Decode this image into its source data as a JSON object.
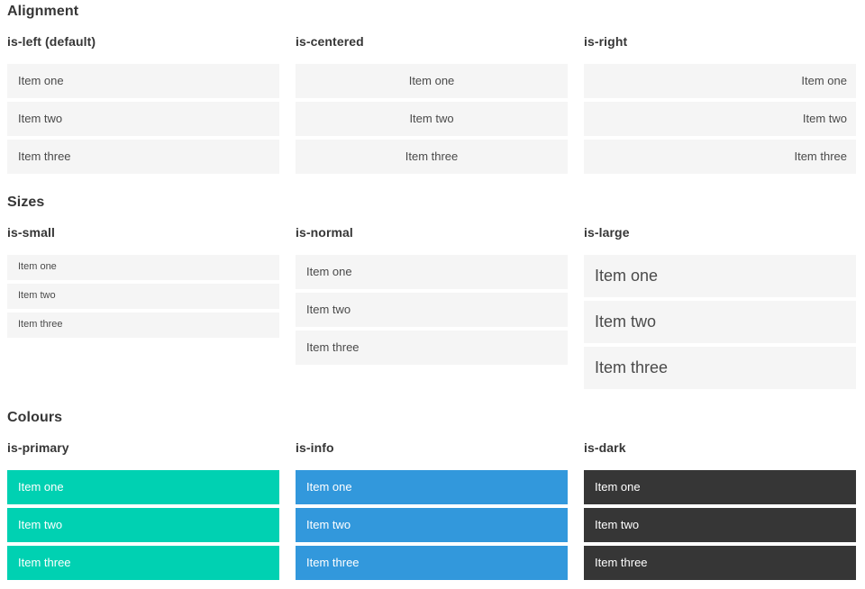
{
  "sections": [
    {
      "title": "Alignment",
      "groups": [
        {
          "label": "is-left (default)",
          "items": [
            "Item one",
            "Item two",
            "Item three"
          ]
        },
        {
          "label": "is-centered",
          "items": [
            "Item one",
            "Item two",
            "Item three"
          ]
        },
        {
          "label": "is-right",
          "items": [
            "Item one",
            "Item two",
            "Item three"
          ]
        }
      ]
    },
    {
      "title": "Sizes",
      "groups": [
        {
          "label": "is-small",
          "items": [
            "Item one",
            "Item two",
            "Item three"
          ]
        },
        {
          "label": "is-normal",
          "items": [
            "Item one",
            "Item two",
            "Item three"
          ]
        },
        {
          "label": "is-large",
          "items": [
            "Item one",
            "Item two",
            "Item three"
          ]
        }
      ]
    },
    {
      "title": "Colours",
      "groups": [
        {
          "label": "is-primary",
          "items": [
            "Item one",
            "Item two",
            "Item three"
          ]
        },
        {
          "label": "is-info",
          "items": [
            "Item one",
            "Item two",
            "Item three"
          ]
        },
        {
          "label": "is-dark",
          "items": [
            "Item one",
            "Item two",
            "Item three"
          ]
        }
      ]
    }
  ],
  "colors": {
    "heading": "#363636",
    "item_bg": "#f5f5f5",
    "item_text": "#4a4a4a",
    "primary": "#00d1b2",
    "info": "#3298dc",
    "dark": "#363636",
    "on_color_text": "#ffffff"
  }
}
